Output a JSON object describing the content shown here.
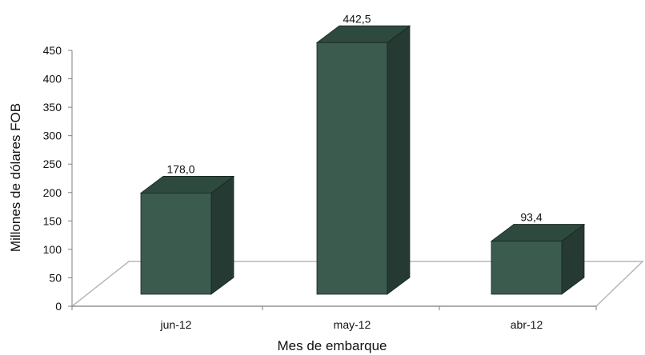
{
  "chart_data": {
    "type": "bar",
    "categories": [
      "jun-12",
      "may-12",
      "abr-12"
    ],
    "values": [
      178.0,
      442.5,
      93.4
    ],
    "data_labels": [
      "178,0",
      "442,5",
      "93,4"
    ],
    "xlabel": "Mes de embarque",
    "ylabel": "Millones de dólares FOB",
    "ylim": [
      0,
      450
    ],
    "yticks": [
      0,
      50,
      100,
      150,
      200,
      250,
      300,
      350,
      400,
      450
    ],
    "grid": false,
    "legend": "none",
    "style": "3d-column",
    "colors": {
      "bar_front": "#3b5b4f",
      "bar_top": "#2e4a3f",
      "bar_side": "#243a32",
      "bar_edge": "#16261f",
      "floor": "#b7b7b7",
      "axis": "#7f7f7f"
    }
  }
}
